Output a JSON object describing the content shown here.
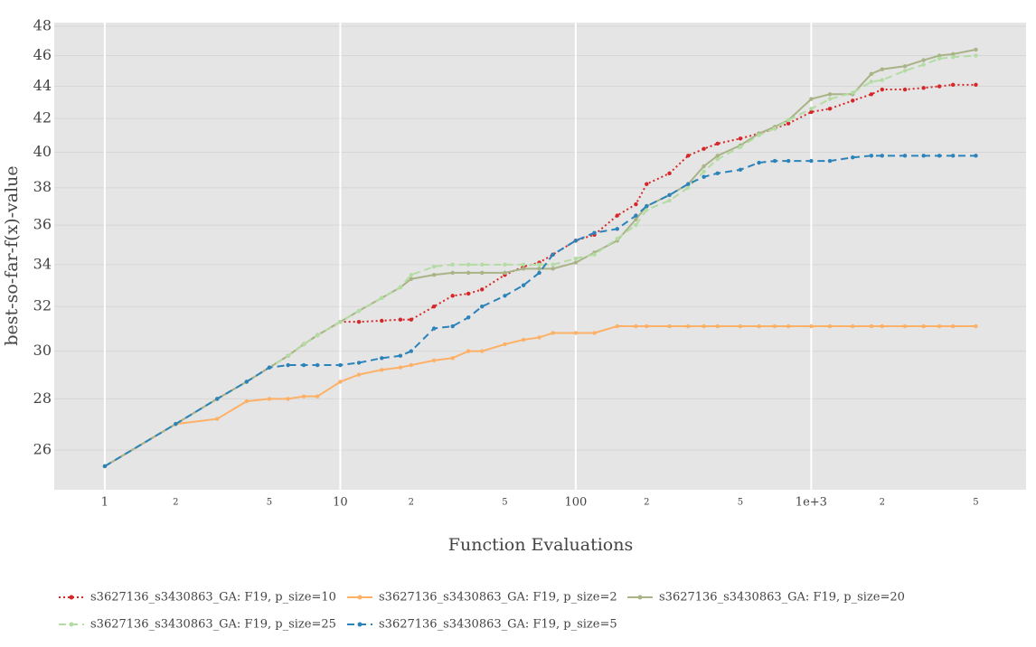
{
  "chart_data": {
    "type": "line",
    "xlabel": "Function Evaluations",
    "ylabel": "best-so-far-f(x)-value",
    "xscale": "log",
    "yscale": "log",
    "grid": true,
    "background": "#e5e5e5",
    "xlim": [
      0.61,
      8170
    ],
    "ylim": [
      24.55,
      48.25
    ],
    "xticks": [
      1,
      2,
      5,
      10,
      {
        "value": 20,
        "label": "2"
      },
      {
        "value": 50,
        "label": "5"
      },
      100,
      {
        "value": 200,
        "label": "2"
      },
      {
        "value": 500,
        "label": "5"
      },
      {
        "value": 1000,
        "label": "1e+3"
      },
      {
        "value": 2000,
        "label": "2"
      },
      {
        "value": 5000,
        "label": "5"
      }
    ],
    "yticks": [
      26,
      28,
      30,
      32,
      34,
      36,
      38,
      40,
      42,
      44,
      46,
      48
    ],
    "x": [
      1,
      2,
      3,
      4,
      5,
      6,
      7,
      8,
      10,
      12,
      15,
      18,
      20,
      25,
      30,
      35,
      40,
      50,
      60,
      70,
      80,
      100,
      120,
      150,
      180,
      200,
      250,
      300,
      350,
      400,
      500,
      600,
      700,
      800,
      1000,
      1200,
      1500,
      1800,
      2000,
      2500,
      3000,
      3500,
      4000,
      5000
    ],
    "series": [
      {
        "name": "s3627136_s3430863_GA: F19, p_size=10",
        "color": "#d62728",
        "dash": "dot",
        "values": [
          25.4,
          27.0,
          28.0,
          28.7,
          29.3,
          29.8,
          30.3,
          30.7,
          31.3,
          31.3,
          31.35,
          31.4,
          31.4,
          32.0,
          32.5,
          32.6,
          32.8,
          33.5,
          33.9,
          34.1,
          34.5,
          35.2,
          35.5,
          36.5,
          37.1,
          38.2,
          38.8,
          39.8,
          40.2,
          40.5,
          40.8,
          41.1,
          41.4,
          41.7,
          42.4,
          42.6,
          43.1,
          43.5,
          43.8,
          43.8,
          43.9,
          44.0,
          44.1,
          44.1
        ]
      },
      {
        "name": "s3627136_s3430863_GA: F19, p_size=2",
        "color": "#fdb066",
        "dash": "solid",
        "values": [
          25.4,
          27.0,
          27.2,
          27.9,
          28.0,
          28.0,
          28.1,
          28.1,
          28.7,
          29.0,
          29.2,
          29.3,
          29.4,
          29.6,
          29.7,
          30.0,
          30.0,
          30.3,
          30.5,
          30.6,
          30.8,
          30.8,
          30.8,
          31.1,
          31.1,
          31.1,
          31.1,
          31.1,
          31.1,
          31.1,
          31.1,
          31.1,
          31.1,
          31.1,
          31.1,
          31.1,
          31.1,
          31.1,
          31.1,
          31.1,
          31.1,
          31.1,
          31.1,
          31.1
        ]
      },
      {
        "name": "s3627136_s3430863_GA: F19, p_size=20",
        "color": "#a8b386",
        "dash": "solid",
        "values": [
          25.4,
          27.0,
          28.0,
          28.7,
          29.3,
          29.8,
          30.3,
          30.7,
          31.3,
          31.8,
          32.4,
          32.9,
          33.3,
          33.5,
          33.6,
          33.6,
          33.6,
          33.6,
          33.8,
          33.8,
          33.8,
          34.1,
          34.6,
          35.2,
          36.3,
          37.0,
          37.6,
          38.2,
          39.2,
          39.8,
          40.4,
          41.1,
          41.5,
          41.9,
          43.2,
          43.5,
          43.5,
          44.8,
          45.1,
          45.3,
          45.7,
          46.0,
          46.1,
          46.4
        ]
      },
      {
        "name": "s3627136_s3430863_GA: F19, p_size=25",
        "color": "#b2dca2",
        "dash": "dash",
        "values": [
          25.4,
          27.0,
          28.0,
          28.7,
          29.3,
          29.8,
          30.3,
          30.7,
          31.3,
          31.8,
          32.4,
          32.9,
          33.5,
          33.9,
          34.0,
          34.0,
          34.0,
          34.0,
          34.0,
          34.0,
          34.0,
          34.3,
          34.5,
          35.3,
          36.0,
          36.8,
          37.3,
          38.0,
          38.9,
          39.6,
          40.3,
          41.0,
          41.4,
          41.9,
          42.6,
          43.2,
          43.6,
          44.3,
          44.4,
          45.0,
          45.4,
          45.8,
          45.9,
          46.0
        ]
      },
      {
        "name": "s3627136_s3430863_GA: F19, p_size=5",
        "color": "#2b83ba",
        "dash": "dash",
        "values": [
          25.4,
          27.0,
          28.0,
          28.7,
          29.3,
          29.4,
          29.4,
          29.4,
          29.4,
          29.5,
          29.7,
          29.8,
          30.0,
          31.0,
          31.1,
          31.5,
          32.0,
          32.5,
          33.0,
          33.6,
          34.5,
          35.2,
          35.6,
          35.8,
          36.5,
          37.0,
          37.6,
          38.2,
          38.6,
          38.8,
          39.0,
          39.4,
          39.5,
          39.5,
          39.5,
          39.5,
          39.7,
          39.8,
          39.8,
          39.8,
          39.8,
          39.8,
          39.8,
          39.8
        ]
      }
    ]
  }
}
